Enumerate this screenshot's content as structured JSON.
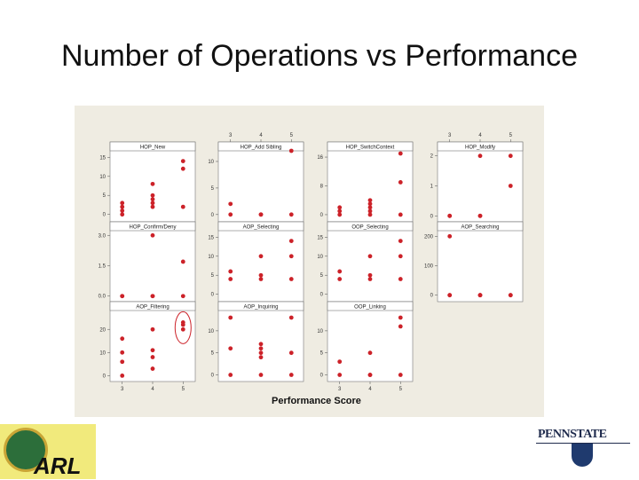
{
  "slide": {
    "title": "Number of Operations vs Performance"
  },
  "chart_data": {
    "type": "scatter",
    "xlabel": "Performance Score",
    "x_ticks": [
      3,
      4,
      5
    ],
    "point_color": "#cc2229",
    "panels": [
      {
        "title": "HOP_New",
        "yticks": [
          0,
          5,
          10,
          15
        ],
        "ylim": [
          -1,
          16
        ],
        "points": [
          [
            3,
            0
          ],
          [
            3,
            1
          ],
          [
            3,
            2
          ],
          [
            3,
            3
          ],
          [
            4,
            2
          ],
          [
            4,
            3
          ],
          [
            4,
            4
          ],
          [
            4,
            5
          ],
          [
            4,
            8
          ],
          [
            5,
            2
          ],
          [
            5,
            12
          ],
          [
            5,
            14
          ]
        ]
      },
      {
        "title": "HOP_Add Sibling",
        "yticks": [
          0,
          5,
          10
        ],
        "ylim": [
          -0.7,
          11.5
        ],
        "points": [
          [
            3,
            0
          ],
          [
            3,
            2
          ],
          [
            4,
            0
          ],
          [
            4,
            0
          ],
          [
            5,
            0
          ],
          [
            5,
            12
          ]
        ]
      },
      {
        "title": "HOP_SwitchContext",
        "yticks": [
          0,
          8,
          16
        ],
        "ylim": [
          -1,
          17
        ],
        "points": [
          [
            3,
            0
          ],
          [
            3,
            1
          ],
          [
            3,
            2
          ],
          [
            4,
            0
          ],
          [
            4,
            1
          ],
          [
            4,
            2
          ],
          [
            4,
            3
          ],
          [
            4,
            4
          ],
          [
            5,
            0
          ],
          [
            5,
            9
          ],
          [
            5,
            17
          ]
        ]
      },
      {
        "title": "HOP_Modify",
        "yticks": [
          0,
          1,
          2
        ],
        "ylim": [
          -0.08,
          2.08
        ],
        "points": [
          [
            3,
            0
          ],
          [
            3,
            0
          ],
          [
            4,
            0
          ],
          [
            4,
            0
          ],
          [
            4,
            2
          ],
          [
            5,
            1
          ],
          [
            5,
            2
          ]
        ]
      },
      {
        "title": "HOP_Confirm/Deny",
        "yticks": [
          0.0,
          1.5,
          3.0
        ],
        "ylim": [
          -0.1,
          3.1
        ],
        "points": [
          [
            3,
            0
          ],
          [
            3,
            0
          ],
          [
            4,
            0
          ],
          [
            4,
            0
          ],
          [
            4,
            3
          ],
          [
            5,
            0
          ],
          [
            5,
            1.7
          ]
        ]
      },
      {
        "title": "AOP_Selecting",
        "yticks": [
          0,
          5,
          10,
          15
        ],
        "ylim": [
          -1,
          16
        ],
        "points": [
          [
            3,
            4
          ],
          [
            3,
            6
          ],
          [
            4,
            4
          ],
          [
            4,
            5
          ],
          [
            4,
            10
          ],
          [
            5,
            4
          ],
          [
            5,
            10
          ],
          [
            5,
            14
          ]
        ]
      },
      {
        "title": "OOP_Selecting",
        "yticks": [
          0,
          5,
          10,
          15
        ],
        "ylim": [
          -1,
          16
        ],
        "points": [
          [
            3,
            4
          ],
          [
            3,
            6
          ],
          [
            4,
            4
          ],
          [
            4,
            5
          ],
          [
            4,
            10
          ],
          [
            5,
            4
          ],
          [
            5,
            10
          ],
          [
            5,
            14
          ]
        ]
      },
      {
        "title": "AOP_Searching",
        "yticks": [
          0,
          100,
          200
        ],
        "ylim": [
          -10,
          210
        ],
        "points": [
          [
            3,
            0
          ],
          [
            3,
            0
          ],
          [
            3,
            200
          ],
          [
            4,
            0
          ],
          [
            4,
            0
          ],
          [
            4,
            0
          ],
          [
            5,
            0
          ],
          [
            5,
            0
          ]
        ]
      },
      {
        "title": "AOP_Filtering",
        "yticks": [
          0,
          10,
          20
        ],
        "ylim": [
          -1,
          27
        ],
        "points": [
          [
            3,
            0
          ],
          [
            3,
            6
          ],
          [
            3,
            10
          ],
          [
            3,
            16
          ],
          [
            4,
            3
          ],
          [
            4,
            8
          ],
          [
            4,
            11
          ],
          [
            4,
            20
          ],
          [
            5,
            20
          ],
          [
            5,
            22
          ],
          [
            5,
            23
          ]
        ]
      },
      {
        "title": "AOP_Inquiring",
        "yticks": [
          0,
          5,
          10
        ],
        "ylim": [
          -0.7,
          14
        ],
        "points": [
          [
            3,
            0
          ],
          [
            3,
            6
          ],
          [
            3,
            13
          ],
          [
            4,
            0
          ],
          [
            4,
            4
          ],
          [
            4,
            5
          ],
          [
            4,
            6
          ],
          [
            4,
            7
          ],
          [
            5,
            0
          ],
          [
            5,
            5
          ],
          [
            5,
            13
          ]
        ]
      },
      {
        "title": "OOP_Linking",
        "yticks": [
          0,
          5,
          10
        ],
        "ylim": [
          -0.7,
          14
        ],
        "points": [
          [
            3,
            0
          ],
          [
            3,
            3
          ],
          [
            4,
            0
          ],
          [
            4,
            0
          ],
          [
            4,
            5
          ],
          [
            5,
            0
          ],
          [
            5,
            11
          ],
          [
            5,
            13
          ]
        ]
      }
    ]
  }
}
